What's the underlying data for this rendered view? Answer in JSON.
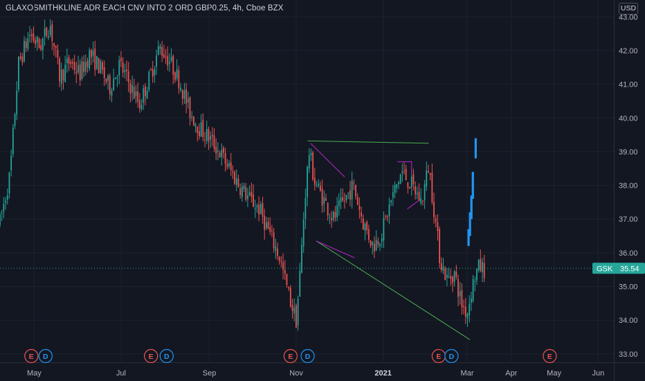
{
  "header": {
    "title": "GLAXOSMITHKLINE ADR EACH CNV INTO 2 ORD GBP0.25, 4h, Cboe BZX",
    "currency": "USD"
  },
  "colors": {
    "background": "#131722",
    "up": "#26a69a",
    "down": "#ef5350",
    "future_bars": "#2196f3",
    "trend_line_upper": "#4caf50",
    "trend_line_lower": "#4caf50",
    "pattern_lines": "#9c27b0",
    "price_line": "#26a69a",
    "earnings_marker": "#ef5350",
    "dividend_marker": "#2196f3"
  },
  "chart_data": {
    "type": "candlestick",
    "ylim": [
      32.75,
      43.5
    ],
    "y_ticks": [
      "33.00",
      "34.00",
      "35.00",
      "36.00",
      "37.00",
      "38.00",
      "39.00",
      "40.00",
      "41.00",
      "42.00",
      "43.00"
    ],
    "x_domain": [
      "2020-04-07",
      "2021-06-12"
    ],
    "x_ticks": [
      {
        "date": "2020-05-01",
        "label": "May"
      },
      {
        "date": "2020-07-01",
        "label": "Jul"
      },
      {
        "date": "2020-09-01",
        "label": "Sep"
      },
      {
        "date": "2020-11-01",
        "label": "Nov"
      },
      {
        "date": "2021-01-01",
        "label": "2021"
      },
      {
        "date": "2021-03-01",
        "label": "Mar"
      },
      {
        "date": "2021-04-01",
        "label": "Apr"
      },
      {
        "date": "2021-05-01",
        "label": "May"
      },
      {
        "date": "2021-06-01",
        "label": "Jun"
      }
    ],
    "price_path": [
      [
        "2020-04-07",
        36.9
      ],
      [
        "2020-04-14",
        38.3
      ],
      [
        "2020-04-20",
        41.6
      ],
      [
        "2020-04-28",
        42.5
      ],
      [
        "2020-05-05",
        42.1
      ],
      [
        "2020-05-12",
        42.8
      ],
      [
        "2020-05-19",
        41.2
      ],
      [
        "2020-05-26",
        41.7
      ],
      [
        "2020-06-02",
        41.3
      ],
      [
        "2020-06-09",
        41.9
      ],
      [
        "2020-06-16",
        41.5
      ],
      [
        "2020-06-23",
        40.9
      ],
      [
        "2020-06-30",
        41.6
      ],
      [
        "2020-07-07",
        41.0
      ],
      [
        "2020-07-14",
        40.4
      ],
      [
        "2020-07-21",
        41.2
      ],
      [
        "2020-07-28",
        42.1
      ],
      [
        "2020-08-04",
        41.7
      ],
      [
        "2020-08-11",
        41.1
      ],
      [
        "2020-08-18",
        40.2
      ],
      [
        "2020-08-25",
        39.7
      ],
      [
        "2020-09-01",
        39.4
      ],
      [
        "2020-09-08",
        39.0
      ],
      [
        "2020-09-15",
        38.5
      ],
      [
        "2020-09-22",
        38.0
      ],
      [
        "2020-09-29",
        37.6
      ],
      [
        "2020-10-06",
        37.3
      ],
      [
        "2020-10-13",
        36.6
      ],
      [
        "2020-10-20",
        35.9
      ],
      [
        "2020-10-27",
        34.7
      ],
      [
        "2020-11-01",
        34.0
      ],
      [
        "2020-11-04",
        35.6
      ],
      [
        "2020-11-07",
        37.6
      ],
      [
        "2020-11-10",
        39.0
      ],
      [
        "2020-11-14",
        38.1
      ],
      [
        "2020-11-20",
        37.6
      ],
      [
        "2020-11-27",
        37.0
      ],
      [
        "2020-12-04",
        37.5
      ],
      [
        "2020-12-11",
        38.0
      ],
      [
        "2020-12-18",
        36.9
      ],
      [
        "2020-12-25",
        36.2
      ],
      [
        "2020-12-31",
        36.6
      ],
      [
        "2021-01-07",
        37.6
      ],
      [
        "2021-01-14",
        38.4
      ],
      [
        "2021-01-21",
        38.0
      ],
      [
        "2021-01-28",
        37.5
      ],
      [
        "2021-02-02",
        38.6
      ],
      [
        "2021-02-06",
        37.2
      ],
      [
        "2021-02-10",
        35.8
      ],
      [
        "2021-02-15",
        35.2
      ],
      [
        "2021-02-20",
        35.4
      ],
      [
        "2021-02-25",
        34.5
      ],
      [
        "2021-03-01",
        34.2
      ],
      [
        "2021-03-04",
        34.9
      ],
      [
        "2021-03-07",
        35.4
      ],
      [
        "2021-03-10",
        35.6
      ],
      [
        "2021-03-13",
        35.5
      ]
    ],
    "future_bars": [
      {
        "date": "2021-03-02",
        "low": 36.2,
        "high": 36.7
      },
      {
        "date": "2021-03-03",
        "low": 36.5,
        "high": 37.2
      },
      {
        "date": "2021-03-04",
        "low": 37.0,
        "high": 37.7
      },
      {
        "date": "2021-03-05",
        "low": 37.6,
        "high": 38.4
      },
      {
        "date": "2021-03-07",
        "low": 38.8,
        "high": 39.4
      }
    ],
    "last_price": {
      "symbol": "GSK",
      "value": 35.54
    },
    "trend_lines": [
      {
        "name": "upper-trend-line",
        "from": [
          "2020-11-09",
          39.32
        ],
        "to": [
          "2021-02-02",
          39.25
        ]
      },
      {
        "name": "lower-trend-line",
        "from": [
          "2020-11-15",
          36.35
        ],
        "to": [
          "2021-03-03",
          33.42
        ]
      }
    ],
    "pattern_lines": [
      {
        "points": [
          [
            "2020-11-11",
            39.25
          ],
          [
            "2020-12-05",
            38.25
          ]
        ]
      },
      {
        "points": [
          [
            "2020-11-15",
            36.35
          ],
          [
            "2020-12-12",
            35.85
          ]
        ]
      },
      {
        "points": [
          [
            "2021-01-11",
            38.7
          ],
          [
            "2021-01-21",
            38.7
          ],
          [
            "2021-01-21",
            38.35
          ]
        ]
      },
      {
        "points": [
          [
            "2021-01-18",
            37.3
          ],
          [
            "2021-01-26",
            37.55
          ]
        ]
      }
    ],
    "events": [
      {
        "type": "E",
        "date": "2020-04-29"
      },
      {
        "type": "D",
        "date": "2020-05-09"
      },
      {
        "type": "E",
        "date": "2020-07-22"
      },
      {
        "type": "D",
        "date": "2020-08-02"
      },
      {
        "type": "E",
        "date": "2020-10-28"
      },
      {
        "type": "D",
        "date": "2020-11-09"
      },
      {
        "type": "E",
        "date": "2021-02-09"
      },
      {
        "type": "D",
        "date": "2021-02-18"
      },
      {
        "type": "E",
        "date": "2021-04-28"
      }
    ]
  }
}
